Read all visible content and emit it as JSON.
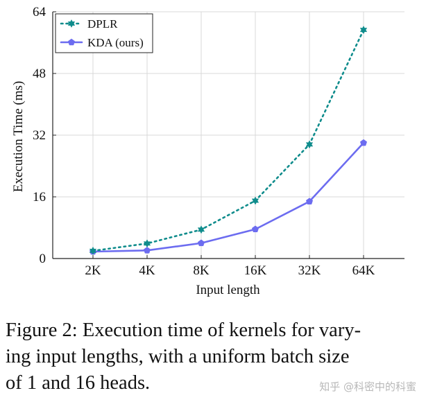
{
  "chart_data": {
    "type": "line",
    "categories": [
      "2K",
      "4K",
      "8K",
      "16K",
      "32K",
      "64K"
    ],
    "xlabel": "Input length",
    "ylabel": "Execution Time (ms)",
    "ylim": [
      0,
      64
    ],
    "yticks": [
      0,
      16,
      32,
      48,
      64
    ],
    "grid": true,
    "legend_position": "top-left",
    "series": [
      {
        "name": "DPLR",
        "color": "#0f8c8c",
        "style": "dotted",
        "marker": "star",
        "values": [
          2.0,
          3.9,
          7.5,
          15.0,
          29.6,
          59.3
        ]
      },
      {
        "name": "KDA (ours)",
        "color": "#6c6cf0",
        "style": "solid",
        "marker": "pentagon",
        "values": [
          1.8,
          2.1,
          4.0,
          7.6,
          14.8,
          30.0
        ]
      }
    ]
  },
  "caption": "Figure 2: Execution time of kernels for varying input lengths, with a uniform batch size of 1 and 16 heads.",
  "caption_lines": [
    "Figure 2: Execution time of kernels for vary-",
    "ing input lengths, with a uniform batch size",
    "of 1 and 16 heads."
  ],
  "watermark": "知乎 @科密中的科蜜"
}
